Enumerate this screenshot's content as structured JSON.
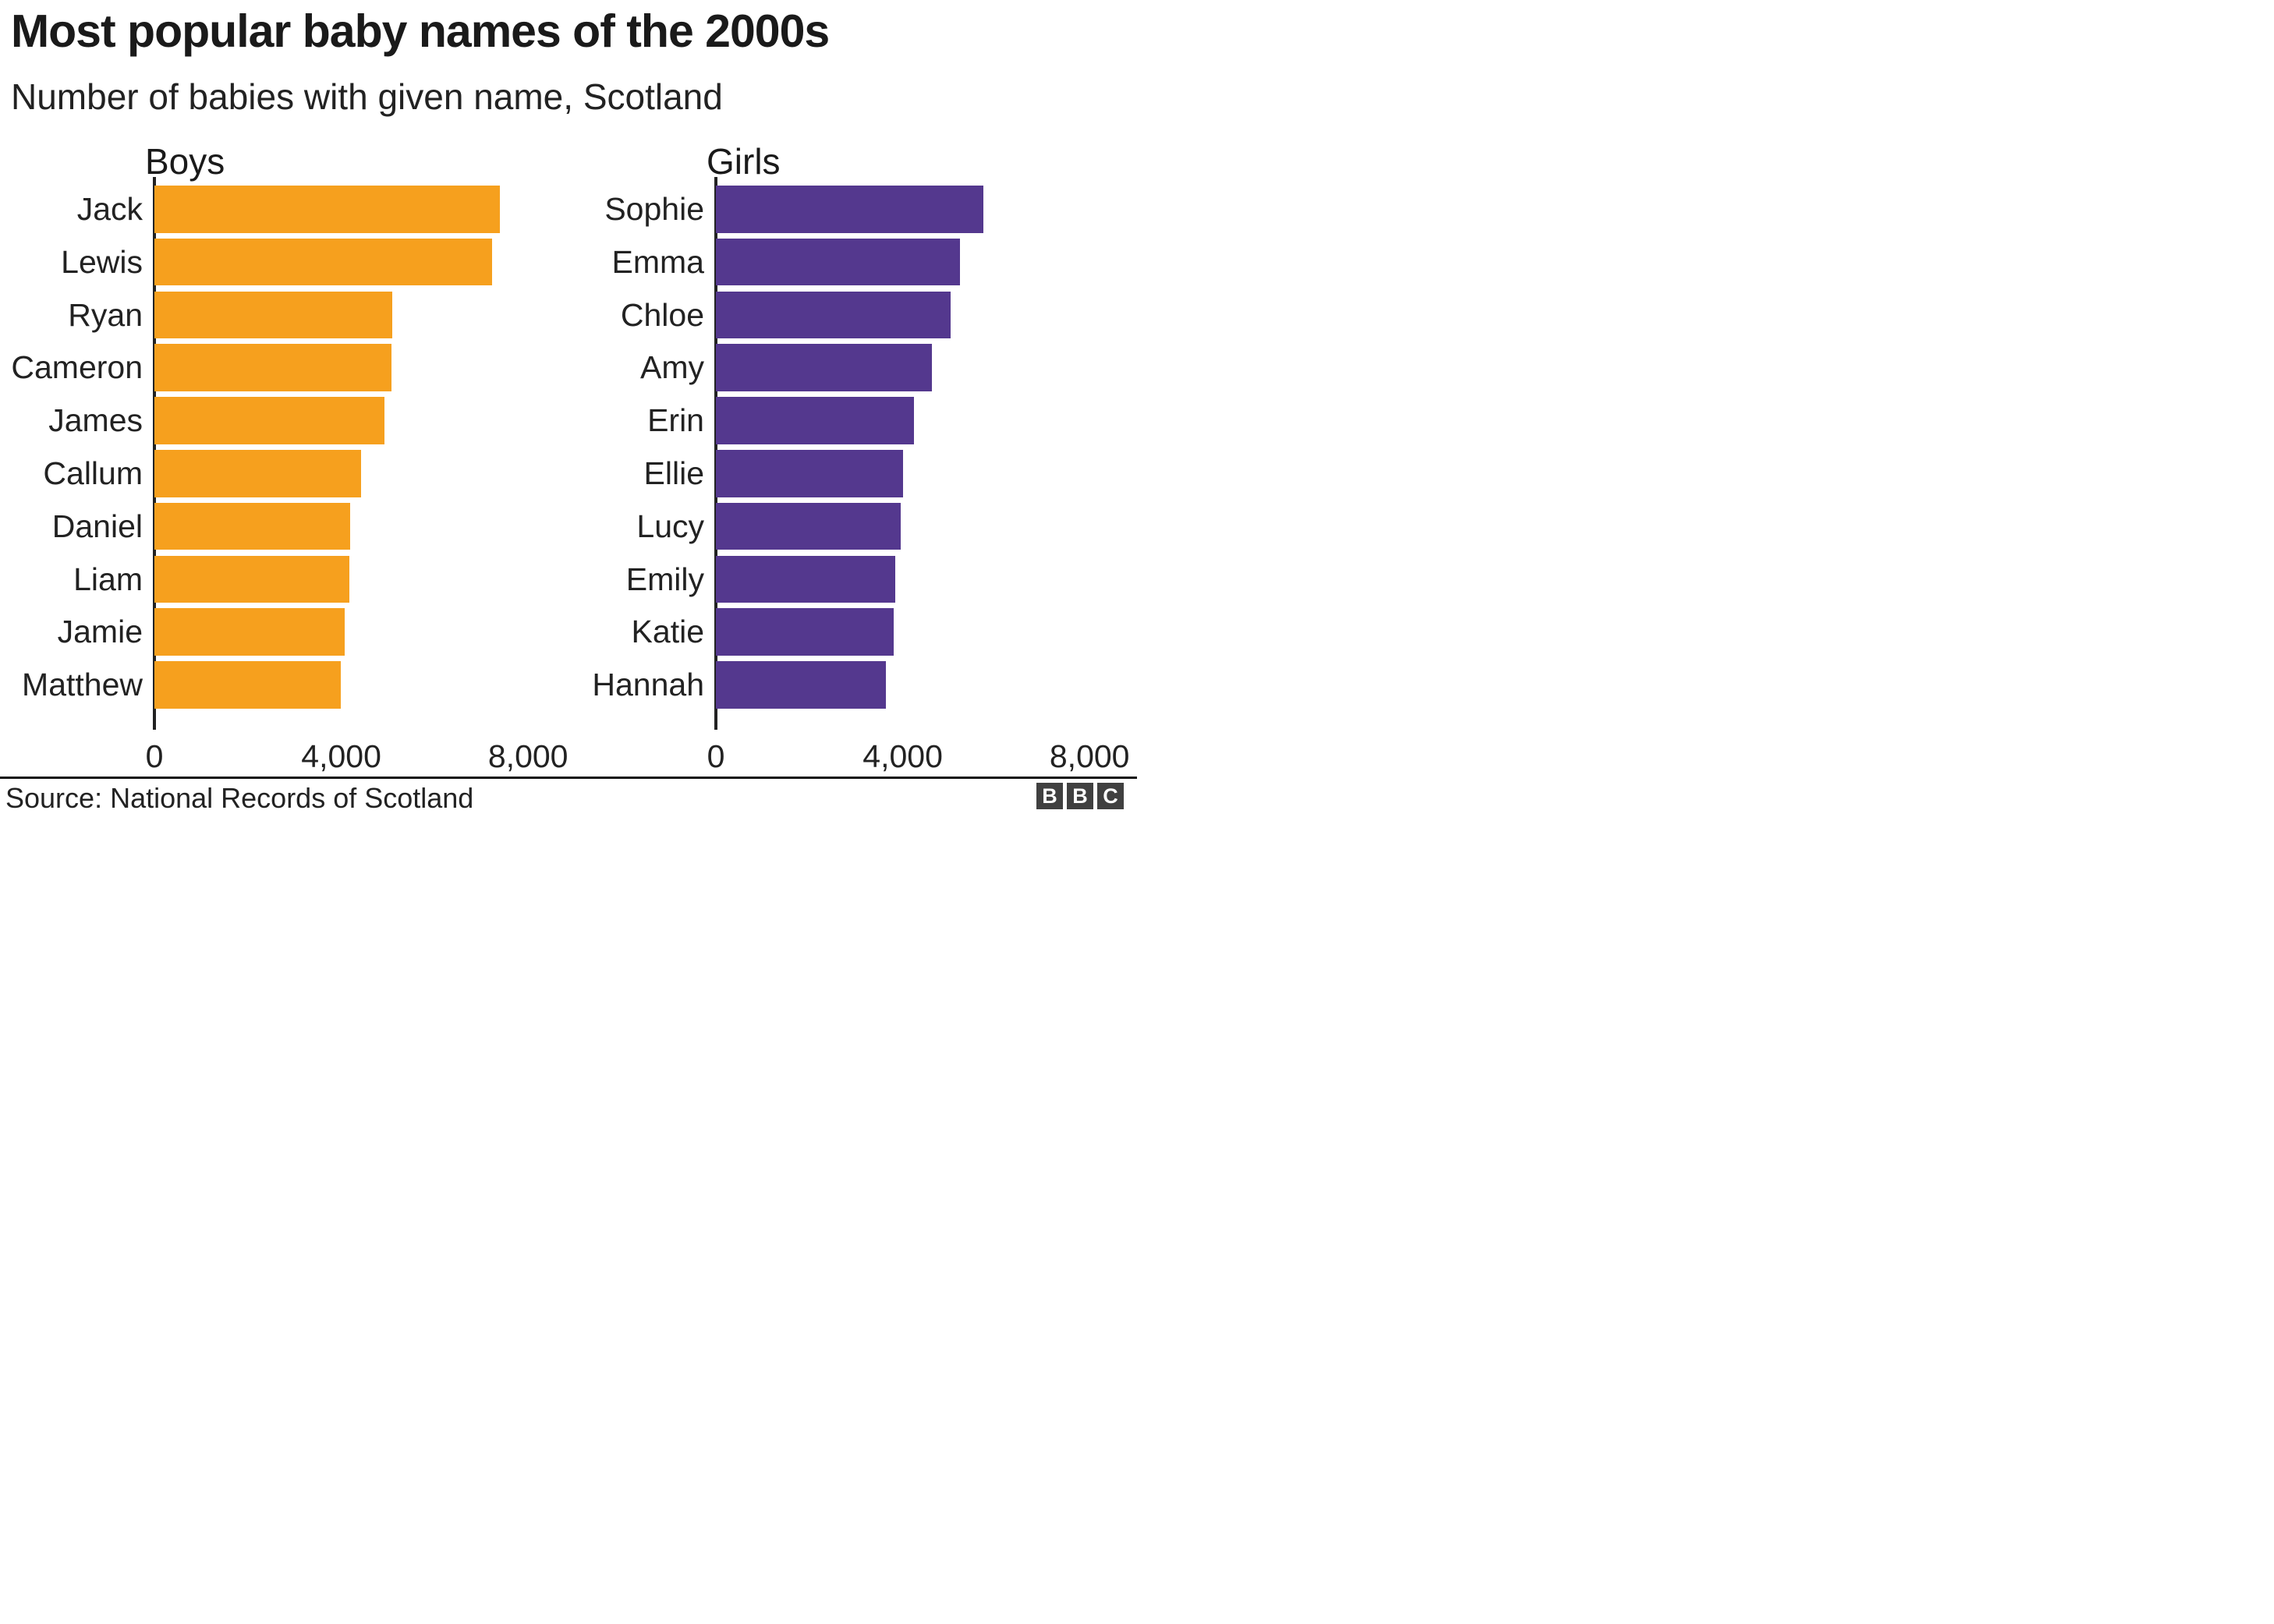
{
  "header": {
    "title": "Most popular baby names of the 2000s",
    "subtitle": "Number of babies with given name, Scotland"
  },
  "colors": {
    "boys_bar": "#f6a01e",
    "girls_bar": "#54388e",
    "axis": "#222222",
    "text": "#222222",
    "title_text": "#1a1a1a",
    "footer_rule": "#111111",
    "logo_square": "#404040",
    "logo_letter": "#ffffff"
  },
  "chart_data": [
    {
      "type": "bar",
      "orientation": "horizontal",
      "title": "Boys",
      "categories": [
        "Jack",
        "Lewis",
        "Ryan",
        "Cameron",
        "James",
        "Callum",
        "Daniel",
        "Liam",
        "Jamie",
        "Matthew"
      ],
      "values": [
        7400,
        7220,
        5090,
        5070,
        4920,
        4430,
        4190,
        4180,
        4080,
        3990
      ],
      "color": "#f6a01e",
      "xlim": [
        0,
        8000
      ],
      "ticks": [
        0,
        4000,
        8000
      ],
      "tick_labels": [
        "0",
        "4,000",
        "8,000"
      ],
      "grid": false,
      "legend": false
    },
    {
      "type": "bar",
      "orientation": "horizontal",
      "title": "Girls",
      "categories": [
        "Sophie",
        "Emma",
        "Chloe",
        "Amy",
        "Erin",
        "Ellie",
        "Lucy",
        "Emily",
        "Katie",
        "Hannah"
      ],
      "values": [
        5730,
        5230,
        5020,
        4620,
        4240,
        4000,
        3950,
        3840,
        3810,
        3640
      ],
      "color": "#54388e",
      "xlim": [
        0,
        8000
      ],
      "ticks": [
        0,
        4000,
        8000
      ],
      "tick_labels": [
        "0",
        "4,000",
        "8,000"
      ],
      "grid": false,
      "legend": false
    }
  ],
  "footer": {
    "source": "Source: National Records of Scotland",
    "logo_letters": [
      "B",
      "B",
      "C"
    ]
  }
}
